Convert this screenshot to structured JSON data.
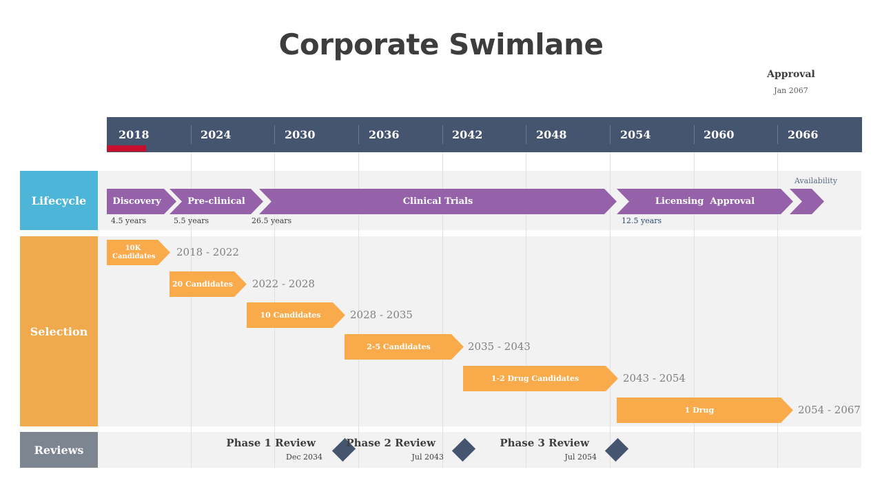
{
  "title": "Corporate Swimlane",
  "approval": {
    "label": "Approval",
    "date": "Jan 2067"
  },
  "years": [
    "2018",
    "2024",
    "2030",
    "2036",
    "2042",
    "2048",
    "2054",
    "2060",
    "2066"
  ],
  "lanes": {
    "lifecycle": "Lifecycle",
    "selection": "Selection",
    "reviews": "Reviews"
  },
  "lifecycle": {
    "phases": [
      {
        "label": "Discovery",
        "duration": "4.5 years"
      },
      {
        "label": "Pre-clinical",
        "duration": "5.5 years"
      },
      {
        "label": "Clinical Trials",
        "duration": "26.5 years"
      },
      {
        "label": "Licensing  Approval",
        "duration": "12.5 years"
      }
    ],
    "availability": "Availability"
  },
  "selection": [
    {
      "label": "10K Candidates",
      "range": "2018 - 2022"
    },
    {
      "label": "20 Candidates",
      "range": "2022 - 2028"
    },
    {
      "label": "10 Candidates",
      "range": "2028 - 2035"
    },
    {
      "label": "2-5 Candidates",
      "range": "2035 - 2043"
    },
    {
      "label": "1-2 Drug Candidates",
      "range": "2043 - 2054"
    },
    {
      "label": "1 Drug",
      "range": "2054 - 2067"
    }
  ],
  "reviews": [
    {
      "label": "Phase 1 Review",
      "date": "Dec 2034"
    },
    {
      "label": "Phase 2 Review",
      "date": "Jul 2043"
    },
    {
      "label": "Phase 3 Review",
      "date": "Jul 2054"
    }
  ],
  "colors": {
    "header": "#45546f",
    "lifecycle": "#4db6d8",
    "selection": "#f0a94c",
    "reviews": "#7d8590",
    "phase": "#9561a8",
    "candidate": "#f9aa4a",
    "today_marker": "#c8102e"
  }
}
